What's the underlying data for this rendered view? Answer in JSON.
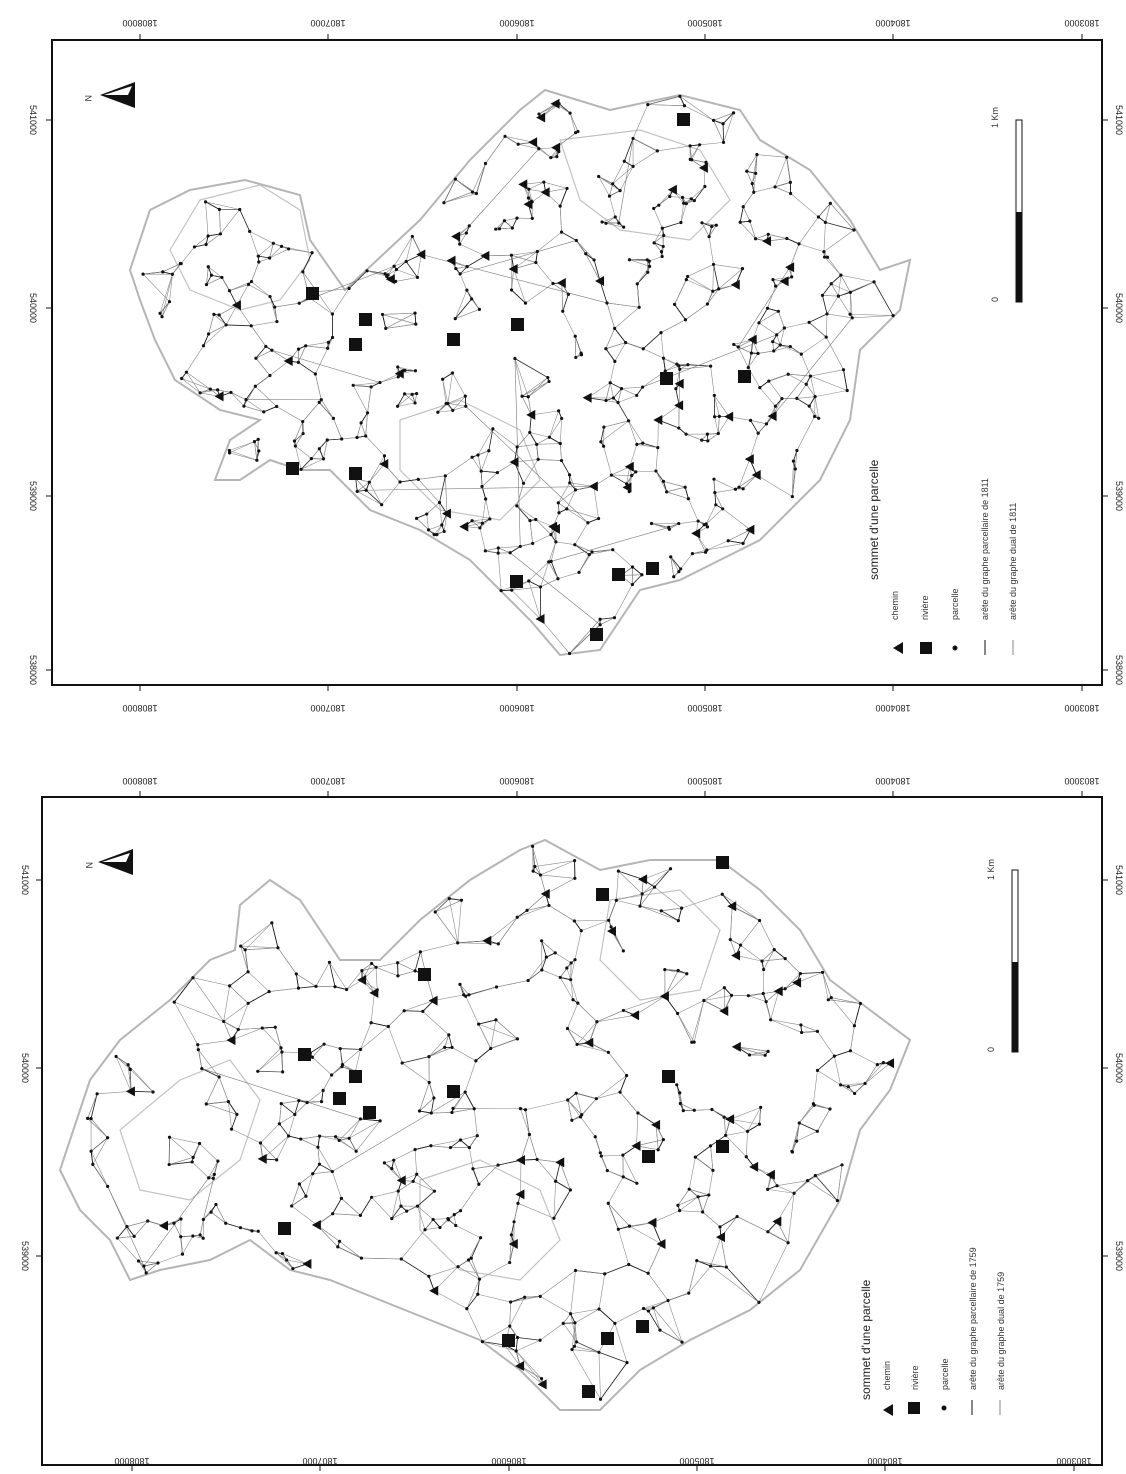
{
  "maps": [
    {
      "id": "map-1811",
      "top_ticks": [
        "1808000",
        "1807000",
        "1806000",
        "1805000",
        "1804000",
        "1803000"
      ],
      "bottom_ticks": [
        "1808000",
        "1807000",
        "1806000",
        "1805000",
        "1804000",
        "1803000"
      ],
      "left_ticks": [
        "541000",
        "540000",
        "539000",
        "538000"
      ],
      "right_ticks": [
        "541000",
        "540000",
        "539000",
        "538000"
      ],
      "north_label": "N",
      "legend": {
        "title": "sommet d'une parcelle",
        "items": [
          "chemin",
          "rivière",
          "parcelle"
        ],
        "line_items": [
          "arête du graphe parcellaire de 1811",
          "arête du graphe dual de 1811"
        ]
      },
      "scale": {
        "start": "0",
        "end": "1 Km"
      }
    },
    {
      "id": "map-1759",
      "top_ticks": [
        "1808000",
        "1807000",
        "1806000",
        "1805000",
        "1804000",
        "1803000"
      ],
      "bottom_ticks": [
        "1808000",
        "1807000",
        "1806000",
        "1805000",
        "1804000",
        "1803000"
      ],
      "left_ticks": [
        "541000",
        "540000",
        "539000"
      ],
      "right_ticks": [
        "541000",
        "540000",
        "539000"
      ],
      "north_label": "N",
      "legend": {
        "title": "sommet d'une parcelle",
        "items": [
          "chemin",
          "rivière",
          "parcelle"
        ],
        "line_items": [
          "arête du graphe parcellaire de 1759",
          "arête du graphe dual de 1759"
        ]
      },
      "scale": {
        "start": "0",
        "end": "1 Km"
      }
    }
  ],
  "colors": {
    "frame": "#111111",
    "edge": "#555555",
    "boundary": "#b5b5b5",
    "node": "#111111"
  }
}
